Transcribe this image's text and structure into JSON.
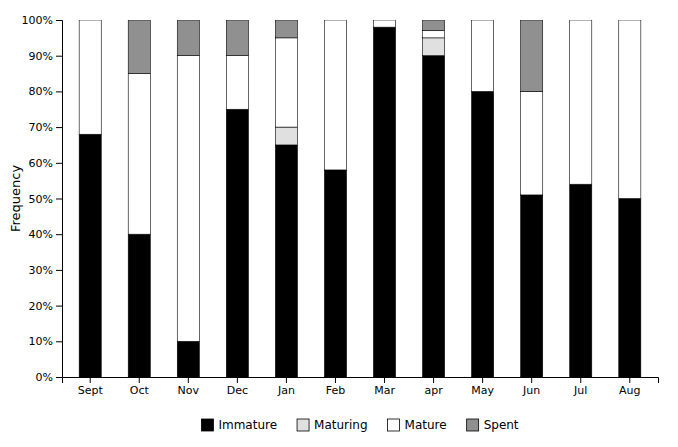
{
  "chart_data": {
    "type": "bar",
    "stacked": true,
    "ylabel": "Frequency",
    "categories": [
      "Sept",
      "Oct",
      "Nov",
      "Dec",
      "Jan",
      "Feb",
      "Mar",
      "apr",
      "May",
      "Jun",
      "Jul",
      "Aug"
    ],
    "series": [
      {
        "name": "Immature",
        "color": "#000000",
        "values": [
          68,
          40,
          10,
          75,
          65,
          58,
          98,
          90,
          80,
          51,
          54,
          50
        ]
      },
      {
        "name": "Maturing",
        "color": "#e0e0e0",
        "values": [
          0,
          0,
          0,
          0,
          5,
          0,
          0,
          5,
          0,
          0,
          0,
          0
        ]
      },
      {
        "name": "Mature",
        "color": "#ffffff",
        "values": [
          32,
          45,
          80,
          15,
          25,
          42,
          2,
          2,
          20,
          29,
          46,
          50
        ]
      },
      {
        "name": "Spent",
        "color": "#909090",
        "values": [
          0,
          15,
          10,
          10,
          5,
          0,
          0,
          3,
          0,
          20,
          0,
          0
        ]
      }
    ],
    "ylim": [
      0,
      100
    ],
    "yticks": [
      {
        "value": 0,
        "label": "0%"
      },
      {
        "value": 10,
        "label": "10%"
      },
      {
        "value": 20,
        "label": "20%"
      },
      {
        "value": 30,
        "label": "30%"
      },
      {
        "value": 40,
        "label": "40%"
      },
      {
        "value": 50,
        "label": "50%"
      },
      {
        "value": 60,
        "label": "60%"
      },
      {
        "value": 70,
        "label": "70%"
      },
      {
        "value": 80,
        "label": "80%"
      },
      {
        "value": 90,
        "label": "90%"
      },
      {
        "value": 100,
        "label": "100%"
      }
    ],
    "grid": false,
    "legend": "bottom"
  }
}
